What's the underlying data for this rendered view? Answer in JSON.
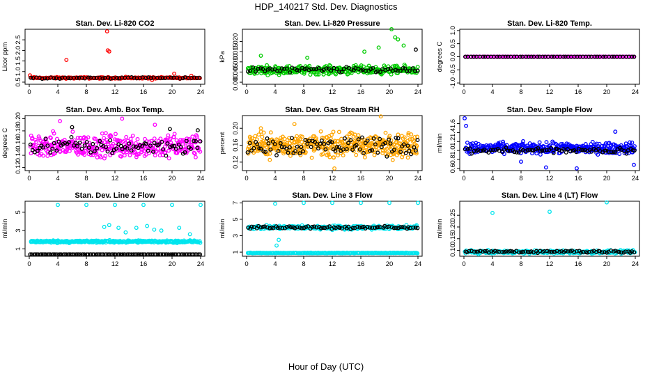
{
  "title": "HDP_140217  Std. Dev. Diagnostics",
  "xlabel": "Hour of Day (UTC)",
  "chart_data": [
    {
      "type": "scatter",
      "title": "Stan. Dev. Li-820 CO2",
      "ylabel": "Licor ppm",
      "xlim": [
        0,
        24
      ],
      "ylim": [
        0.4,
        3.0
      ],
      "xticks": [
        0,
        4,
        8,
        12,
        16,
        20,
        24
      ],
      "yticks": [
        0.5,
        1.0,
        1.5,
        2.0,
        2.5
      ],
      "ytick_labels": [
        "0.5",
        "1.0",
        "1.5",
        "2.0",
        "2.5"
      ],
      "colors": [
        "#ff0000",
        "#000000"
      ],
      "series": [
        {
          "color": "#ff0000",
          "x": [
            0.1,
            5.2,
            10.9,
            11.0,
            11.2,
            13.5,
            17.2,
            20.3,
            22.7
          ],
          "y": [
            0.82,
            1.55,
            2.9,
            2.0,
            1.95,
            0.75,
            0.6,
            0.9,
            0.8
          ],
          "base": {
            "level": 0.7,
            "spread": 0.05,
            "count": 190
          }
        },
        {
          "color": "#000000",
          "x": [],
          "y": [],
          "base": {
            "level": 0.7,
            "spread": 0.05,
            "count": 60
          }
        }
      ]
    },
    {
      "type": "scatter",
      "title": "Stan. Dev. Li-820 Pressure",
      "ylabel": "kPa",
      "xlim": [
        0,
        24
      ],
      "ylim": [
        -0.001,
        0.026
      ],
      "xticks": [
        0,
        4,
        8,
        12,
        16,
        20,
        24
      ],
      "yticks": [
        0,
        0.005,
        0.01,
        0.015,
        0.02
      ],
      "ytick_labels": [
        "0.000",
        "0.005",
        "0.010",
        "0.015",
        "0.020"
      ],
      "colors": [
        "#00cc00",
        "#000000"
      ],
      "series": [
        {
          "color": "#00cc00",
          "x": [
            2.0,
            8.5,
            16.5,
            18.5,
            20.3,
            20.8,
            21.2,
            22.0
          ],
          "y": [
            0.013,
            0.012,
            0.015,
            0.017,
            0.026,
            0.022,
            0.021,
            0.018
          ],
          "base": {
            "level": 0.006,
            "spread": 0.003,
            "count": 320
          }
        },
        {
          "color": "#000000",
          "x": [
            23.7
          ],
          "y": [
            0.016
          ],
          "base": {
            "level": 0.006,
            "spread": 0.002,
            "count": 70
          }
        }
      ]
    },
    {
      "type": "scatter",
      "title": "Stan. Dev. Li-820 Temp.",
      "ylabel": "degrees C",
      "xlim": [
        0,
        24
      ],
      "ylim": [
        -1.05,
        1.05
      ],
      "xticks": [
        0,
        4,
        8,
        12,
        16,
        20,
        24
      ],
      "yticks": [
        -1.0,
        -0.5,
        0.0,
        0.5,
        1.0
      ],
      "ytick_labels": [
        "-1.0",
        "-0.5",
        "0.0",
        "0.5",
        "1.0"
      ],
      "colors": [
        "#ff00ff",
        "#000000"
      ],
      "series": [
        {
          "color": "#ff00ff",
          "x": [],
          "y": [],
          "base": {
            "level": 0.0,
            "spread": 0.0,
            "count": 120
          }
        },
        {
          "color": "#000000",
          "x": [],
          "y": [],
          "base": {
            "level": 0.0,
            "spread": 0.0,
            "count": 60
          }
        }
      ]
    },
    {
      "type": "scatter",
      "title": "Stan. Dev. Amb. Box Temp.",
      "ylabel": "degrees C",
      "xlim": [
        0,
        24
      ],
      "ylim": [
        0.115,
        0.205
      ],
      "xticks": [
        0,
        4,
        8,
        12,
        16,
        20,
        24
      ],
      "yticks": [
        0.12,
        0.14,
        0.16,
        0.18,
        0.2
      ],
      "ytick_labels": [
        "0.12",
        "0.14",
        "0.16",
        "0.18",
        "0.20"
      ],
      "colors": [
        "#ff00ff",
        "#000000"
      ],
      "series": [
        {
          "color": "#ff00ff",
          "x": [
            4.3,
            13.0,
            17.6
          ],
          "y": [
            0.196,
            0.2,
            0.19
          ],
          "base": {
            "level": 0.155,
            "spread": 0.028,
            "count": 380
          }
        },
        {
          "color": "#000000",
          "x": [
            6.0,
            19.7,
            23.6
          ],
          "y": [
            0.186,
            0.183,
            0.181
          ],
          "base": {
            "level": 0.155,
            "spread": 0.02,
            "count": 80
          }
        }
      ]
    },
    {
      "type": "scatter",
      "title": "Stan. Dev. Gas Stream RH",
      "ylabel": "percent",
      "xlim": [
        0,
        24
      ],
      "ylim": [
        0.1,
        0.23
      ],
      "xticks": [
        0,
        4,
        8,
        12,
        16,
        20,
        24
      ],
      "yticks": [
        0.12,
        0.16,
        0.2
      ],
      "ytick_labels": [
        "0.12",
        "0.16",
        "0.20"
      ],
      "colors": [
        "#ffa500",
        "#000000"
      ],
      "series": [
        {
          "color": "#ffa500",
          "x": [
            2.0,
            6.7,
            12.3,
            18.8,
            23.9
          ],
          "y": [
            0.2,
            0.21,
            0.105,
            0.228,
            0.18
          ],
          "base": {
            "level": 0.16,
            "spread": 0.04,
            "count": 420
          }
        },
        {
          "color": "#000000",
          "x": [],
          "y": [],
          "base": {
            "level": 0.16,
            "spread": 0.035,
            "count": 90
          }
        }
      ]
    },
    {
      "type": "scatter",
      "title": "Stan. Dev. Sample Flow",
      "ylabel": "ml/min",
      "xlim": [
        0,
        24
      ],
      "ylim": [
        0.55,
        1.78
      ],
      "xticks": [
        0,
        4,
        8,
        12,
        16,
        20,
        24
      ],
      "yticks": [
        0.6,
        0.8,
        1.0,
        1.2,
        1.4,
        1.6
      ],
      "ytick_labels": [
        "0.6",
        "0.8",
        "1.0",
        "1.2",
        "1.4",
        "1.6"
      ],
      "colors": [
        "#0000ff",
        "#000000"
      ],
      "series": [
        {
          "color": "#0000ff",
          "x": [
            0.1,
            0.3,
            8.0,
            11.5,
            15.8,
            21.2,
            23.8
          ],
          "y": [
            1.72,
            1.55,
            0.75,
            0.62,
            0.6,
            1.42,
            0.68
          ],
          "base": {
            "level": 1.05,
            "spread": 0.18,
            "count": 360
          }
        },
        {
          "color": "#000000",
          "x": [],
          "y": [],
          "base": {
            "level": 1.0,
            "spread": 0.1,
            "count": 80
          }
        }
      ]
    },
    {
      "type": "scatter",
      "title": "Stan. Dev. Line 2 Flow",
      "ylabel": "ml/min",
      "xlim": [
        0,
        24
      ],
      "ylim": [
        0.2,
        6.2
      ],
      "xticks": [
        0,
        4,
        8,
        12,
        16,
        20,
        24
      ],
      "yticks": [
        1,
        3,
        5
      ],
      "ytick_labels": [
        "1",
        "3",
        "5"
      ],
      "colors": [
        "#00e5ee",
        "#000000"
      ],
      "series": [
        {
          "color": "#00e5ee",
          "x": [
            4.0,
            8.0,
            12.0,
            16.0,
            20.0,
            24.0,
            10.5,
            11.2,
            12.5,
            13.5,
            15.0,
            16.5,
            17.5,
            18.5,
            21.0,
            22.5
          ],
          "y": [
            5.8,
            5.8,
            5.8,
            5.8,
            5.8,
            5.8,
            3.4,
            3.6,
            3.3,
            2.8,
            3.3,
            3.5,
            3.1,
            3.0,
            3.3,
            2.6
          ],
          "base": {
            "level": 1.8,
            "spread": 0.2,
            "count": 320
          }
        },
        {
          "color": "#000000",
          "x": [],
          "y": [],
          "base": {
            "level": 0.4,
            "spread": 0.0,
            "count": 110
          }
        }
      ]
    },
    {
      "type": "scatter",
      "title": "Stan. Dev. Line 3 Flow",
      "ylabel": "ml/min",
      "xlim": [
        0,
        24
      ],
      "ylim": [
        0.5,
        7.2
      ],
      "xticks": [
        0,
        4,
        8,
        12,
        16,
        20,
        24
      ],
      "yticks": [
        1,
        3,
        5,
        7
      ],
      "ytick_labels": [
        "1",
        "3",
        "5",
        "7"
      ],
      "colors": [
        "#00e5ee",
        "#000000"
      ],
      "series": [
        {
          "color": "#00e5ee",
          "x": [
            4.0,
            8.0,
            12.0,
            16.0,
            20.0,
            24.0,
            4.2,
            4.5
          ],
          "y": [
            6.9,
            7.0,
            7.0,
            7.0,
            7.0,
            7.0,
            1.8,
            2.5
          ],
          "base": {
            "level": 4.0,
            "spread": 0.35,
            "count": 280
          }
        },
        {
          "color": "#00e5ee",
          "x": [],
          "y": [],
          "base": {
            "level": 0.9,
            "spread": 0.05,
            "count": 220
          }
        },
        {
          "color": "#000000",
          "x": [],
          "y": [],
          "base": {
            "level": 4.0,
            "spread": 0.25,
            "count": 80
          }
        }
      ]
    },
    {
      "type": "scatter",
      "title": "Stan. Dev. Line 4 (LT) Flow",
      "ylabel": "ml/min",
      "xlim": [
        0,
        24
      ],
      "ylim": [
        0.075,
        0.31
      ],
      "xticks": [
        0,
        4,
        8,
        12,
        16,
        20,
        24
      ],
      "yticks": [
        0.1,
        0.15,
        0.2,
        0.25
      ],
      "ytick_labels": [
        "0.10",
        "0.15",
        "0.20",
        "0.25"
      ],
      "colors": [
        "#00e5ee",
        "#000000"
      ],
      "series": [
        {
          "color": "#00e5ee",
          "x": [
            4.0,
            12.0,
            20.0
          ],
          "y": [
            0.26,
            0.265,
            0.305
          ],
          "base": {
            "level": 0.093,
            "spread": 0.01,
            "count": 260
          }
        },
        {
          "color": "#000000",
          "x": [],
          "y": [],
          "base": {
            "level": 0.095,
            "spread": 0.008,
            "count": 80
          }
        }
      ]
    }
  ]
}
